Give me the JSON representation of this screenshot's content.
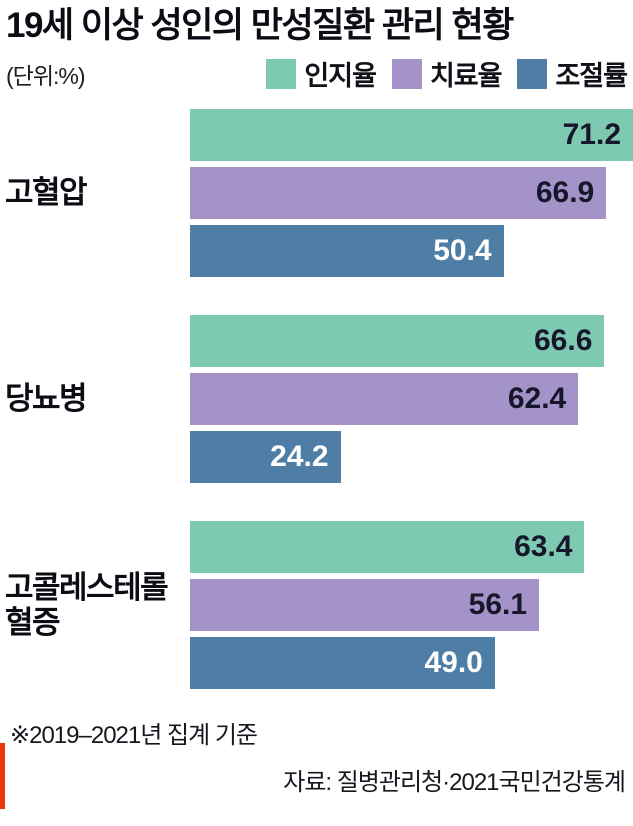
{
  "title": "19세 이상 성인의 만성질환 관리 현황",
  "unit": "(단위:%)",
  "footnotes": [
    "※2019–2021년 집계 기준",
    "자료: 질병관리청·2021국민건강통계"
  ],
  "accent_color": "#e8380d",
  "chart_data": {
    "type": "bar",
    "orientation": "horizontal",
    "title": "19세 이상 성인의 만성질환 관리 현황",
    "unit": "%",
    "categories": [
      "고혈압",
      "당뇨병",
      "고콜레스테롤혈증"
    ],
    "series": [
      {
        "name": "인지율",
        "color": "#7ec9b1",
        "label_color": "#17172b",
        "values": [
          71.2,
          66.6,
          63.4
        ]
      },
      {
        "name": "치료율",
        "color": "#a493c9",
        "label_color": "#17172b",
        "values": [
          66.9,
          62.4,
          56.1
        ]
      },
      {
        "name": "조절률",
        "color": "#4e7da5",
        "label_color": "#ffffff",
        "values": [
          50.4,
          24.2,
          49.0
        ]
      }
    ],
    "xlim": [
      0,
      71.2
    ],
    "grid": false,
    "legend_position": "top-right",
    "value_labels": "inside-right"
  }
}
